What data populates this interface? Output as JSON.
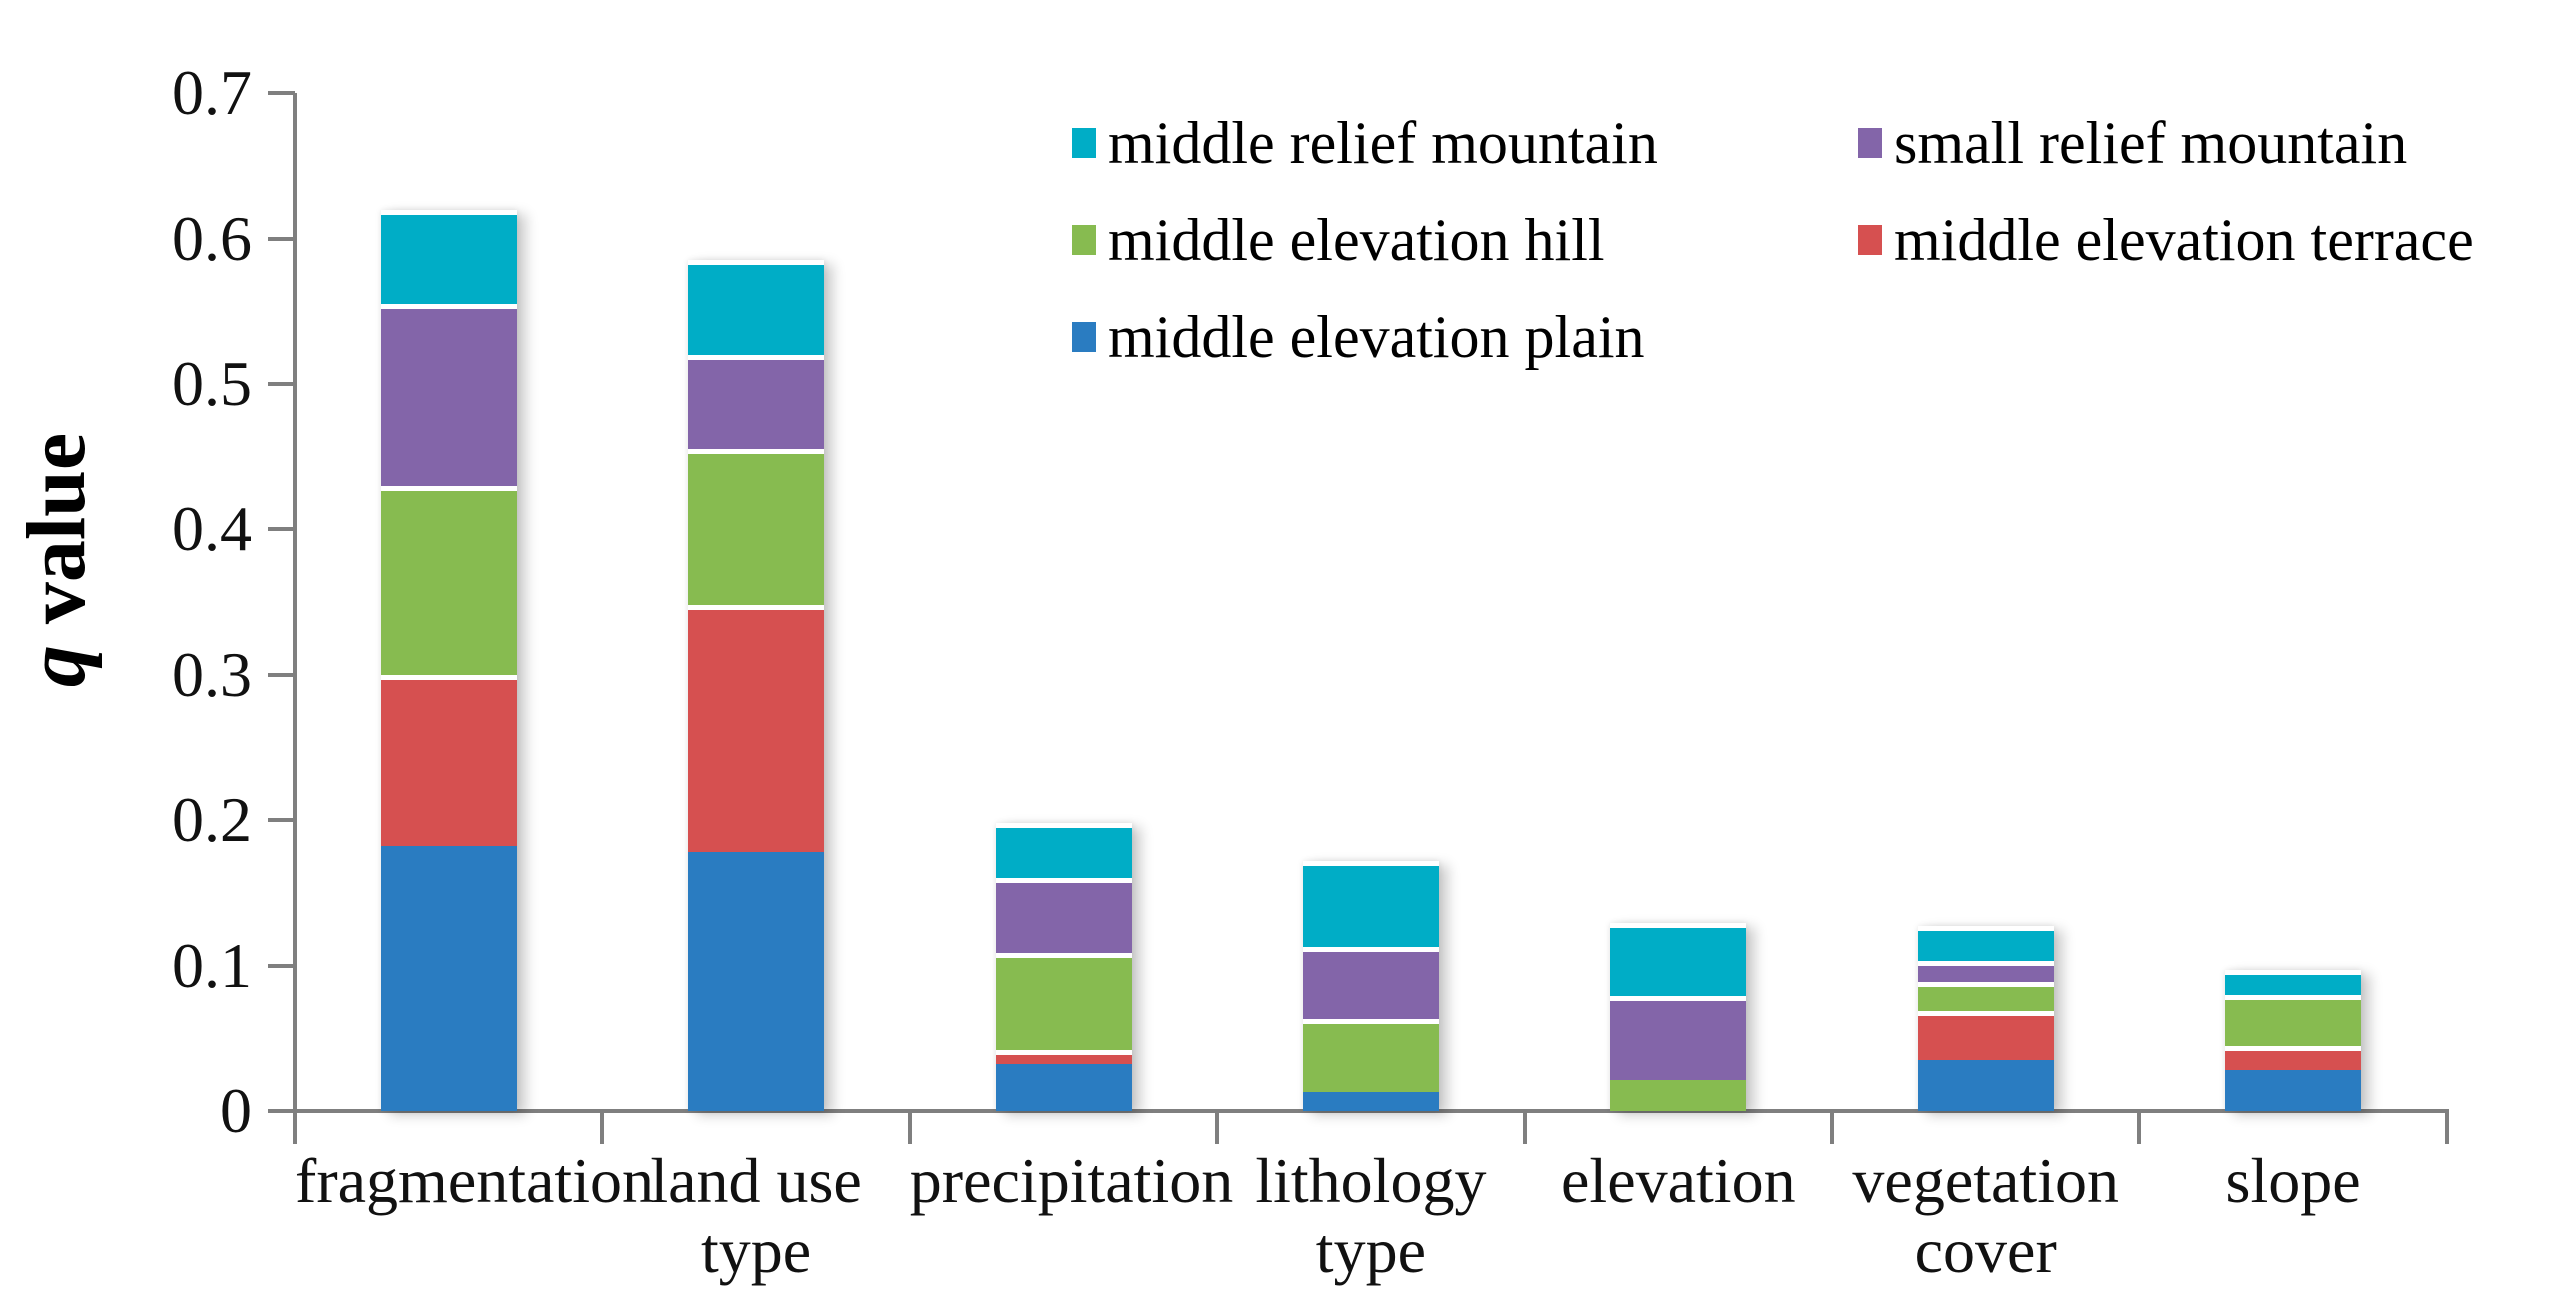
{
  "chart_data": {
    "type": "bar",
    "variant": "stacked-vertical",
    "title": "",
    "ylabel": "q value",
    "ylabel_q": "q",
    "ylabel_rest": " value",
    "xlabel": "",
    "ylim": [
      0,
      0.7
    ],
    "grid": false,
    "legend_position": "top-right-inside-two-columns",
    "yticks": [
      {
        "label": "0.7",
        "value": 0.7
      },
      {
        "label": "0.6",
        "value": 0.6
      },
      {
        "label": "0.5",
        "value": 0.5
      },
      {
        "label": "0.4",
        "value": 0.4
      },
      {
        "label": "0.3",
        "value": 0.3
      },
      {
        "label": "0.2",
        "value": 0.2
      },
      {
        "label": "0.1",
        "value": 0.1
      },
      {
        "label": "0",
        "value": 0
      }
    ],
    "categories": [
      "fragmentation",
      "land use type",
      "precipitation",
      "lithology type",
      "elevation",
      "vegetation\ncover",
      "slope"
    ],
    "series": [
      {
        "name": "middle elevation plain",
        "color": "#2A7CC1",
        "values": [
          0.182,
          0.178,
          0.032,
          0.013,
          0.0,
          0.035,
          0.028
        ]
      },
      {
        "name": "middle elevation terrace",
        "color": "#D65050",
        "values": [
          0.118,
          0.17,
          0.01,
          0.0,
          0.0,
          0.034,
          0.017
        ]
      },
      {
        "name": "middle elevation hill",
        "color": "#87BB50",
        "values": [
          0.13,
          0.107,
          0.067,
          0.05,
          0.021,
          0.02,
          0.035
        ]
      },
      {
        "name": "small relief mountain",
        "color": "#8365A9",
        "values": [
          0.125,
          0.065,
          0.051,
          0.05,
          0.058,
          0.014,
          0.0
        ]
      },
      {
        "name": "middle relief mountain",
        "color": "#00ADC6",
        "values": [
          0.065,
          0.065,
          0.038,
          0.059,
          0.05,
          0.024,
          0.017
        ]
      }
    ],
    "stack_totals": [
      0.62,
      0.585,
      0.198,
      0.172,
      0.129,
      0.127,
      0.097
    ],
    "legend_order": [
      "middle relief mountain",
      "small relief mountain",
      "middle elevation hill",
      "middle elevation terrace",
      "middle elevation plain"
    ],
    "axis_color": "#7f7f7f"
  }
}
